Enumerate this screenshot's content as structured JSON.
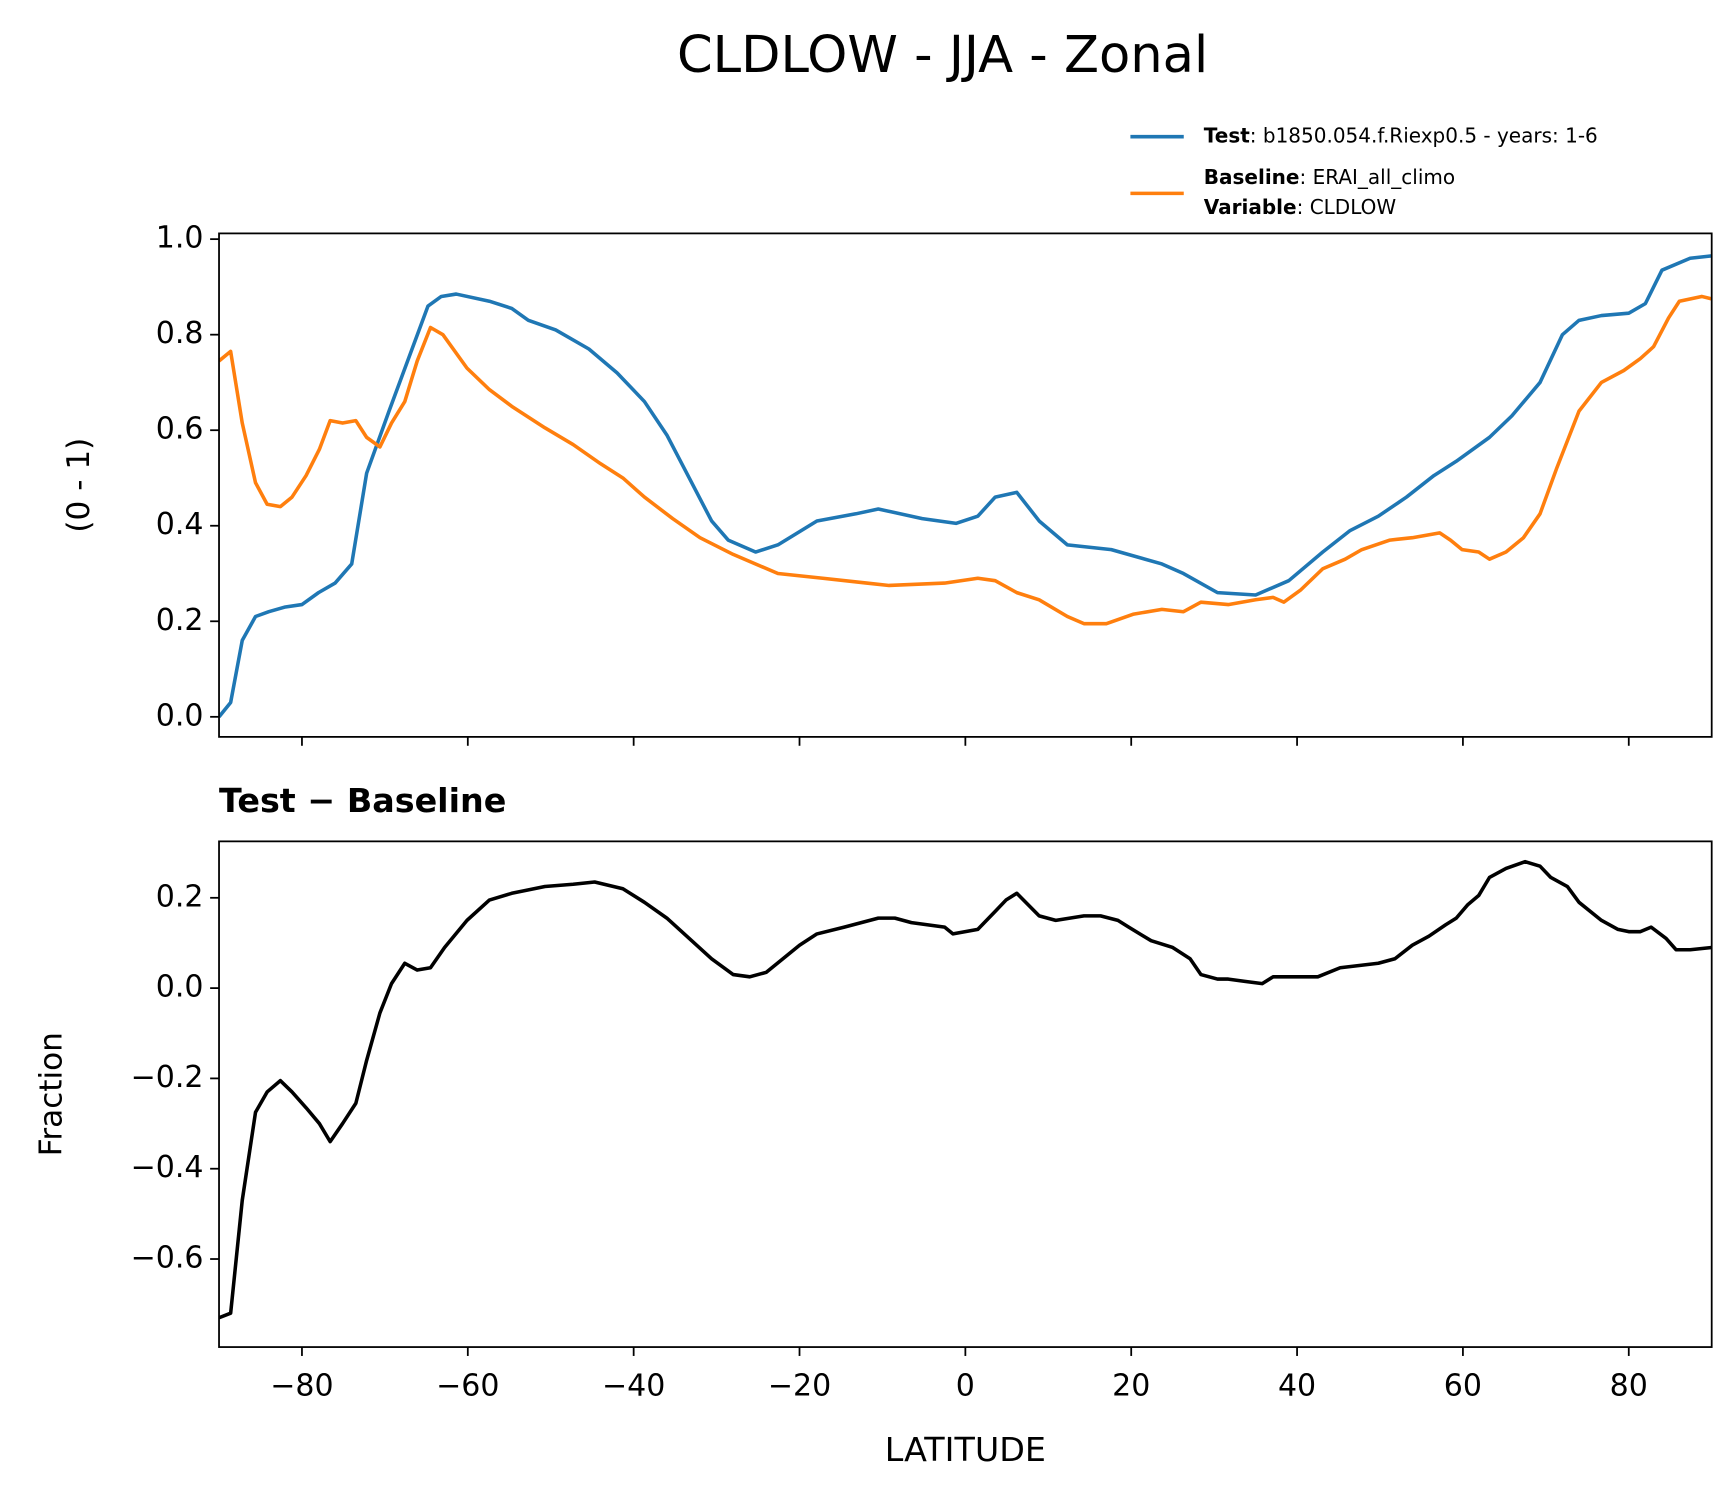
{
  "chart_data": [
    {
      "type": "line",
      "title": "CLDLOW - JJA - Zonal",
      "ylabel": "(0 - 1)",
      "legend": "upper right",
      "xlim": [
        -90,
        90
      ],
      "ylim": [
        -0.042,
        1.012
      ],
      "yticks": [
        {
          "value": 0,
          "label": "0.0"
        },
        0.2,
        0.4,
        0.6,
        0.8,
        {
          "value": 1,
          "label": "1.0"
        }
      ],
      "series": [
        {
          "name": "Test",
          "label": ": b1850.054.f.Riexp0.5 - years: 1-6",
          "color": "#1f77b4",
          "x": [
            -90,
            -88.6,
            -87.2,
            -85.6,
            -84,
            -82,
            -80,
            -78,
            -76,
            -74,
            -72.2,
            -69.5,
            -64.8,
            -63.2,
            -61.4,
            -57.4,
            -54.7,
            -52.7,
            -49.4,
            -45.4,
            -42,
            -38.7,
            -36,
            -33.3,
            -30.6,
            -28.6,
            -25.3,
            -22.6,
            -17.9,
            -13.2,
            -10.5,
            -5.2,
            -1.1,
            1.5,
            3.6,
            6.2,
            8.9,
            12.3,
            17.6,
            23.7,
            26.3,
            30.4,
            35,
            39,
            43.1,
            46.4,
            49.8,
            53.2,
            56.5,
            59.2,
            63.2,
            65.9,
            69.3,
            72,
            74,
            76.7,
            80,
            82,
            84,
            87.4,
            90
          ],
          "values": [
            0.0,
            0.03,
            0.16,
            0.21,
            0.22,
            0.23,
            0.235,
            0.26,
            0.28,
            0.32,
            0.51,
            0.64,
            0.86,
            0.88,
            0.885,
            0.87,
            0.855,
            0.83,
            0.81,
            0.77,
            0.72,
            0.66,
            0.59,
            0.5,
            0.41,
            0.37,
            0.345,
            0.36,
            0.41,
            0.425,
            0.435,
            0.415,
            0.405,
            0.42,
            0.46,
            0.47,
            0.41,
            0.36,
            0.35,
            0.32,
            0.3,
            0.26,
            0.255,
            0.285,
            0.345,
            0.39,
            0.42,
            0.46,
            0.505,
            0.535,
            0.585,
            0.63,
            0.7,
            0.8,
            0.83,
            0.84,
            0.845,
            0.865,
            0.935,
            0.96,
            0.965
          ]
        },
        {
          "name": "Baseline",
          "label": ": ERAI_all_climo",
          "color": "#ff7f0e",
          "x": [
            -90,
            -88.6,
            -87.2,
            -85.6,
            -84.2,
            -82.6,
            -81.2,
            -79.5,
            -77.9,
            -76.6,
            -75.1,
            -73.5,
            -72.2,
            -70.6,
            -69.2,
            -67.6,
            -66.1,
            -64.5,
            -63,
            -60.1,
            -57.4,
            -54.7,
            -50.7,
            -47.3,
            -44,
            -41.3,
            -38.7,
            -35.3,
            -32,
            -28,
            -22.6,
            -17.2,
            -11.9,
            -9.2,
            -2.5,
            1.5,
            3.6,
            6.2,
            8.9,
            12.3,
            14.3,
            17,
            20.3,
            23.7,
            26.3,
            28.4,
            31.7,
            35,
            37.1,
            38.4,
            40.4,
            43.1,
            45.8,
            47.8,
            51.2,
            53.9,
            57.2,
            58.5,
            59.9,
            61.9,
            63.2,
            65.2,
            67.3,
            69.3,
            71.3,
            74,
            76.7,
            79.4,
            81.4,
            83,
            84.8,
            86.1,
            88.8,
            90
          ],
          "values": [
            0.745,
            0.765,
            0.615,
            0.49,
            0.445,
            0.44,
            0.46,
            0.505,
            0.56,
            0.62,
            0.615,
            0.62,
            0.585,
            0.565,
            0.615,
            0.66,
            0.745,
            0.815,
            0.8,
            0.73,
            0.685,
            0.65,
            0.605,
            0.57,
            0.53,
            0.5,
            0.46,
            0.415,
            0.375,
            0.34,
            0.3,
            0.29,
            0.28,
            0.275,
            0.28,
            0.29,
            0.285,
            0.26,
            0.245,
            0.21,
            0.195,
            0.195,
            0.215,
            0.225,
            0.22,
            0.24,
            0.235,
            0.245,
            0.25,
            0.24,
            0.265,
            0.31,
            0.33,
            0.35,
            0.37,
            0.375,
            0.385,
            0.37,
            0.35,
            0.345,
            0.33,
            0.345,
            0.375,
            0.425,
            0.52,
            0.64,
            0.7,
            0.725,
            0.75,
            0.775,
            0.835,
            0.87,
            0.88,
            0.875
          ]
        }
      ],
      "legend_note": {
        "name": "Variable",
        "label": ": CLDLOW"
      }
    },
    {
      "type": "line",
      "title": "Test − Baseline",
      "ylabel": "Fraction",
      "xlabel": "LATITUDE",
      "xlim": [
        -90,
        90
      ],
      "ylim": [
        -0.795,
        0.325
      ],
      "yticks": [
        {
          "value": -0.6,
          "label": "−0.6"
        },
        {
          "value": -0.4,
          "label": "−0.4"
        },
        {
          "value": -0.2,
          "label": "−0.2"
        },
        {
          "value": 0,
          "label": "0.0"
        },
        0.2
      ],
      "xticks": [
        {
          "value": -80,
          "label": "−80"
        },
        {
          "value": -60,
          "label": "−60"
        },
        {
          "value": -40,
          "label": "−40"
        },
        {
          "value": -20,
          "label": "−20"
        },
        0,
        20,
        40,
        60,
        80
      ],
      "series": [
        {
          "color": "#000000",
          "x": [
            -90,
            -88.6,
            -87.2,
            -85.6,
            -84.2,
            -82.6,
            -81.2,
            -79.5,
            -77.9,
            -76.6,
            -75.1,
            -73.5,
            -72.2,
            -70.6,
            -69.2,
            -67.6,
            -66.1,
            -64.5,
            -62.8,
            -60.1,
            -57.4,
            -54.7,
            -50.7,
            -47.3,
            -44.7,
            -41.3,
            -38.7,
            -36,
            -33.3,
            -30.6,
            -28,
            -26,
            -24,
            -22,
            -20,
            -17.9,
            -14.6,
            -10.5,
            -8.5,
            -6.5,
            -4.5,
            -2.5,
            -1.5,
            1.5,
            3.6,
            4.9,
            6.2,
            8.9,
            10.9,
            14.3,
            16.3,
            18.4,
            19.7,
            22.4,
            25,
            27.1,
            28.4,
            30.4,
            31.7,
            33.7,
            35.8,
            37.1,
            42.5,
            45.2,
            49.8,
            51.8,
            53.9,
            55.9,
            57.9,
            59.2,
            60.6,
            61.9,
            63.2,
            65.2,
            67.5,
            69.3,
            70.6,
            72.6,
            74,
            76.7,
            78.7,
            80,
            81.4,
            82.7,
            84.5,
            85.7,
            87.4,
            90
          ],
          "values": [
            -0.73,
            -0.72,
            -0.47,
            -0.275,
            -0.23,
            -0.205,
            -0.23,
            -0.265,
            -0.3,
            -0.34,
            -0.3,
            -0.255,
            -0.16,
            -0.055,
            0.01,
            0.055,
            0.04,
            0.045,
            0.09,
            0.15,
            0.195,
            0.21,
            0.225,
            0.23,
            0.235,
            0.22,
            0.19,
            0.155,
            0.11,
            0.065,
            0.03,
            0.025,
            0.035,
            0.065,
            0.095,
            0.12,
            0.135,
            0.155,
            0.155,
            0.145,
            0.14,
            0.135,
            0.12,
            0.13,
            0.17,
            0.195,
            0.21,
            0.16,
            0.15,
            0.16,
            0.16,
            0.15,
            0.135,
            0.105,
            0.09,
            0.065,
            0.03,
            0.02,
            0.02,
            0.015,
            0.01,
            0.025,
            0.025,
            0.045,
            0.055,
            0.065,
            0.095,
            0.115,
            0.14,
            0.155,
            0.185,
            0.205,
            0.245,
            0.265,
            0.28,
            0.27,
            0.245,
            0.225,
            0.19,
            0.15,
            0.13,
            0.125,
            0.125,
            0.135,
            0.11,
            0.085,
            0.085,
            0.09
          ]
        }
      ]
    }
  ]
}
